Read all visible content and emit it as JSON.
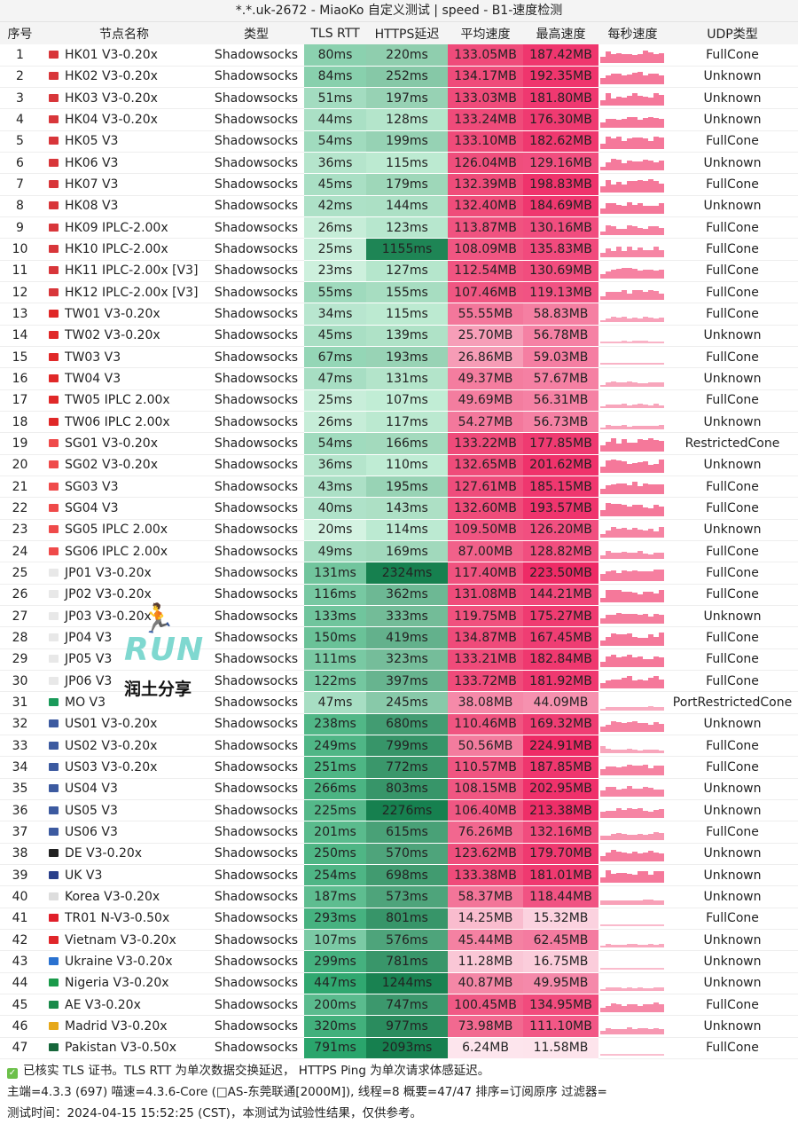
{
  "title": "*.*.uk-2672 - MiaoKo 自定义测试 | speed - B1-速度检测",
  "headers": [
    "序号",
    "节点名称",
    "类型",
    "TLS RTT",
    "HTTPS延迟",
    "平均速度",
    "最高速度",
    "每秒速度",
    "UDP类型"
  ],
  "colors": {
    "tls_light": "#d4f3e2",
    "tls_dark": "#2aa56c",
    "https_light": "#c2eed6",
    "https_dark": "#16804f",
    "avg_light": "#fde7ee",
    "avg_dark": "#ef4b7a",
    "max_light": "#fde7ee",
    "max_dark": "#ee2b66",
    "spark": "#f5789a"
  },
  "flags": {
    "hk": "#d8363a",
    "tw": "#e02828",
    "sg": "#ef4a4a",
    "jp": "#e8e8e8",
    "mo": "#1a9a5a",
    "us": "#3c5aa0",
    "de": "#222222",
    "uk": "#2a3f8a",
    "kr": "#dddddd",
    "tr": "#e01f2a",
    "vn": "#e0262a",
    "ua": "#2a72d0",
    "ng": "#1a9a4a",
    "ae": "#1a8a4a",
    "es": "#e6a81a",
    "pk": "#16663a"
  },
  "rows": [
    [
      "1",
      "hk",
      "HK01 V3-0.20x",
      "Shadowsocks",
      "80ms",
      "220ms",
      "133.05MB",
      "187.42MB",
      "FullCone"
    ],
    [
      "2",
      "hk",
      "HK02 V3-0.20x",
      "Shadowsocks",
      "84ms",
      "252ms",
      "134.17MB",
      "192.35MB",
      "Unknown"
    ],
    [
      "3",
      "hk",
      "HK03 V3-0.20x",
      "Shadowsocks",
      "51ms",
      "197ms",
      "133.03MB",
      "181.80MB",
      "Unknown"
    ],
    [
      "4",
      "hk",
      "HK04 V3-0.20x",
      "Shadowsocks",
      "44ms",
      "128ms",
      "133.24MB",
      "176.30MB",
      "Unknown"
    ],
    [
      "5",
      "hk",
      "HK05 V3",
      "Shadowsocks",
      "54ms",
      "199ms",
      "133.10MB",
      "182.62MB",
      "FullCone"
    ],
    [
      "6",
      "hk",
      "HK06 V3",
      "Shadowsocks",
      "36ms",
      "115ms",
      "126.04MB",
      "129.16MB",
      "Unknown"
    ],
    [
      "7",
      "hk",
      "HK07 V3",
      "Shadowsocks",
      "45ms",
      "179ms",
      "132.39MB",
      "198.83MB",
      "FullCone"
    ],
    [
      "8",
      "hk",
      "HK08 V3",
      "Shadowsocks",
      "42ms",
      "144ms",
      "132.40MB",
      "184.69MB",
      "Unknown"
    ],
    [
      "9",
      "hk",
      "HK09 IPLC-2.00x",
      "Shadowsocks",
      "26ms",
      "123ms",
      "113.87MB",
      "130.16MB",
      "FullCone"
    ],
    [
      "10",
      "hk",
      "HK10 IPLC-2.00x",
      "Shadowsocks",
      "25ms",
      "1155ms",
      "108.09MB",
      "135.83MB",
      "FullCone"
    ],
    [
      "11",
      "hk",
      "HK11 IPLC-2.00x [V3]",
      "Shadowsocks",
      "23ms",
      "127ms",
      "112.54MB",
      "130.69MB",
      "FullCone"
    ],
    [
      "12",
      "hk",
      "HK12 IPLC-2.00x [V3]",
      "Shadowsocks",
      "55ms",
      "155ms",
      "107.46MB",
      "119.13MB",
      "FullCone"
    ],
    [
      "13",
      "tw",
      "TW01 V3-0.20x",
      "Shadowsocks",
      "34ms",
      "115ms",
      "55.55MB",
      "58.83MB",
      "FullCone"
    ],
    [
      "14",
      "tw",
      "TW02 V3-0.20x",
      "Shadowsocks",
      "45ms",
      "139ms",
      "25.70MB",
      "56.78MB",
      "Unknown"
    ],
    [
      "15",
      "tw",
      "TW03 V3",
      "Shadowsocks",
      "67ms",
      "193ms",
      "26.86MB",
      "59.03MB",
      "FullCone"
    ],
    [
      "16",
      "tw",
      "TW04 V3",
      "Shadowsocks",
      "47ms",
      "131ms",
      "49.37MB",
      "57.67MB",
      "Unknown"
    ],
    [
      "17",
      "tw",
      "TW05 IPLC 2.00x",
      "Shadowsocks",
      "25ms",
      "107ms",
      "49.69MB",
      "56.31MB",
      "FullCone"
    ],
    [
      "18",
      "tw",
      "TW06 IPLC 2.00x",
      "Shadowsocks",
      "26ms",
      "117ms",
      "54.27MB",
      "56.73MB",
      "Unknown"
    ],
    [
      "19",
      "sg",
      "SG01 V3-0.20x",
      "Shadowsocks",
      "54ms",
      "166ms",
      "133.22MB",
      "177.85MB",
      "RestrictedCone"
    ],
    [
      "20",
      "sg",
      "SG02 V3-0.20x",
      "Shadowsocks",
      "36ms",
      "110ms",
      "132.65MB",
      "201.62MB",
      "Unknown"
    ],
    [
      "21",
      "sg",
      "SG03 V3",
      "Shadowsocks",
      "43ms",
      "195ms",
      "127.61MB",
      "185.15MB",
      "FullCone"
    ],
    [
      "22",
      "sg",
      "SG04 V3",
      "Shadowsocks",
      "40ms",
      "143ms",
      "132.60MB",
      "193.57MB",
      "FullCone"
    ],
    [
      "23",
      "sg",
      "SG05 IPLC 2.00x",
      "Shadowsocks",
      "20ms",
      "114ms",
      "109.50MB",
      "126.20MB",
      "Unknown"
    ],
    [
      "24",
      "sg",
      "SG06 IPLC 2.00x",
      "Shadowsocks",
      "49ms",
      "169ms",
      "87.00MB",
      "128.82MB",
      "FullCone"
    ],
    [
      "25",
      "jp",
      "JP01 V3-0.20x",
      "Shadowsocks",
      "131ms",
      "2324ms",
      "117.40MB",
      "223.50MB",
      "FullCone"
    ],
    [
      "26",
      "jp",
      "JP02 V3-0.20x",
      "Shadowsocks",
      "116ms",
      "362ms",
      "131.08MB",
      "144.21MB",
      "FullCone"
    ],
    [
      "27",
      "jp",
      "JP03 V3-0.20x",
      "Shadowsocks",
      "133ms",
      "333ms",
      "119.75MB",
      "175.27MB",
      "Unknown"
    ],
    [
      "28",
      "jp",
      "JP04 V3",
      "Shadowsocks",
      "150ms",
      "419ms",
      "134.87MB",
      "167.45MB",
      "FullCone"
    ],
    [
      "29",
      "jp",
      "JP05 V3",
      "Shadowsocks",
      "111ms",
      "323ms",
      "133.21MB",
      "182.84MB",
      "FullCone"
    ],
    [
      "30",
      "jp",
      "JP06 V3",
      "Shadowsocks",
      "122ms",
      "397ms",
      "133.72MB",
      "181.92MB",
      "FullCone"
    ],
    [
      "31",
      "mo",
      "MO V3",
      "Shadowsocks",
      "47ms",
      "245ms",
      "38.08MB",
      "44.09MB",
      "PortRestrictedCone"
    ],
    [
      "32",
      "us",
      "US01 V3-0.20x",
      "Shadowsocks",
      "238ms",
      "680ms",
      "110.46MB",
      "169.32MB",
      "Unknown"
    ],
    [
      "33",
      "us",
      "US02 V3-0.20x",
      "Shadowsocks",
      "249ms",
      "799ms",
      "50.56MB",
      "224.91MB",
      "FullCone"
    ],
    [
      "34",
      "us",
      "US03 V3-0.20x",
      "Shadowsocks",
      "251ms",
      "772ms",
      "110.57MB",
      "187.85MB",
      "FullCone"
    ],
    [
      "35",
      "us",
      "US04 V3",
      "Shadowsocks",
      "266ms",
      "803ms",
      "108.15MB",
      "202.95MB",
      "Unknown"
    ],
    [
      "36",
      "us",
      "US05 V3",
      "Shadowsocks",
      "225ms",
      "2276ms",
      "106.40MB",
      "213.38MB",
      "Unknown"
    ],
    [
      "37",
      "us",
      "US06 V3",
      "Shadowsocks",
      "201ms",
      "615ms",
      "76.26MB",
      "132.16MB",
      "FullCone"
    ],
    [
      "38",
      "de",
      "DE V3-0.20x",
      "Shadowsocks",
      "250ms",
      "570ms",
      "123.62MB",
      "179.70MB",
      "Unknown"
    ],
    [
      "39",
      "uk",
      "UK V3",
      "Shadowsocks",
      "254ms",
      "698ms",
      "133.38MB",
      "181.01MB",
      "Unknown"
    ],
    [
      "40",
      "kr",
      "Korea V3-0.20x",
      "Shadowsocks",
      "187ms",
      "573ms",
      "58.37MB",
      "118.44MB",
      "Unknown"
    ],
    [
      "41",
      "tr",
      "TR01 N-V3-0.50x",
      "Shadowsocks",
      "293ms",
      "801ms",
      "14.25MB",
      "15.32MB",
      "FullCone"
    ],
    [
      "42",
      "vn",
      "Vietnam V3-0.20x",
      "Shadowsocks",
      "107ms",
      "576ms",
      "45.44MB",
      "62.45MB",
      "Unknown"
    ],
    [
      "43",
      "ua",
      "Ukraine V3-0.20x",
      "Shadowsocks",
      "299ms",
      "781ms",
      "11.28MB",
      "16.75MB",
      "Unknown"
    ],
    [
      "44",
      "ng",
      "Nigeria V3-0.20x",
      "Shadowsocks",
      "447ms",
      "1244ms",
      "40.87MB",
      "49.95MB",
      "Unknown"
    ],
    [
      "45",
      "ae",
      "AE V3-0.20x",
      "Shadowsocks",
      "200ms",
      "747ms",
      "100.45MB",
      "134.95MB",
      "FullCone"
    ],
    [
      "46",
      "es",
      "Madrid V3-0.20x",
      "Shadowsocks",
      "320ms",
      "977ms",
      "73.98MB",
      "111.10MB",
      "Unknown"
    ],
    [
      "47",
      "pk",
      "Pakistan V3-0.50x",
      "Shadowsocks",
      "791ms",
      "2093ms",
      "6.24MB",
      "11.58MB",
      "FullCone"
    ]
  ],
  "footer": {
    "line1": "已核实 TLS 证书。TLS RTT 为单次数据交换延迟， HTTPS Ping 为单次请求体感延迟。",
    "line2": "主端=4.3.3 (697) 喵速=4.3.6-Core (□AS-东莞联通[2000M]), 线程=8 概要=47/47 排序=订阅原序 过滤器=",
    "line3": "测试时间：2024-04-15 15:52:25 (CST)，本测试为试验性结果，仅供参考。"
  },
  "logo": {
    "text": "RUN",
    "subtitle": "润土分享"
  }
}
